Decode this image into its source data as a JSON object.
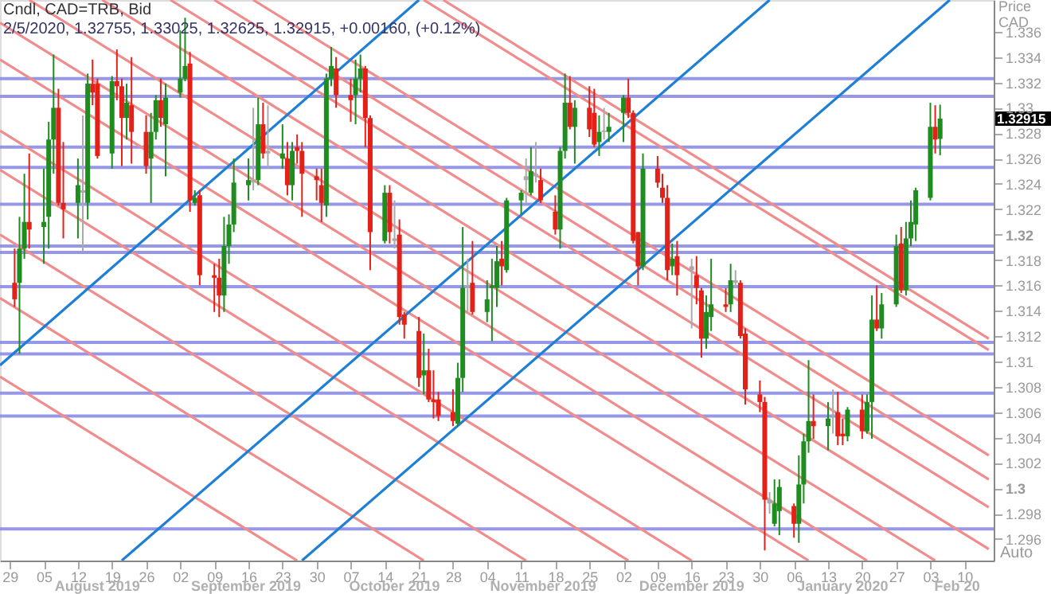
{
  "chart_data": {
    "type": "candlestick",
    "title": "Cndl, CAD=TRB, Bid",
    "subtitle": "2/5/2020, 1.32755, 1.33025, 1.32625, 1.32915, +0.00160, (+0.12%)",
    "ylabel": "Price CAD",
    "x": [
      "2019-07-30",
      "2019-07-31",
      "2019-08-01",
      "2019-08-02",
      "2019-08-05",
      "2019-08-06",
      "2019-08-07",
      "2019-08-08",
      "2019-08-09",
      "2019-08-12",
      "2019-08-13",
      "2019-08-14",
      "2019-08-15",
      "2019-08-16",
      "2019-08-19",
      "2019-08-20",
      "2019-08-21",
      "2019-08-22",
      "2019-08-23",
      "2019-08-26",
      "2019-08-27",
      "2019-08-28",
      "2019-08-29",
      "2019-08-30",
      "2019-09-02",
      "2019-09-03",
      "2019-09-04",
      "2019-09-05",
      "2019-09-06",
      "2019-09-09",
      "2019-09-10",
      "2019-09-11",
      "2019-09-12",
      "2019-09-13",
      "2019-09-16",
      "2019-09-17",
      "2019-09-18",
      "2019-09-19",
      "2019-09-20",
      "2019-09-23",
      "2019-09-24",
      "2019-09-25",
      "2019-09-26",
      "2019-09-27",
      "2019-09-30",
      "2019-10-01",
      "2019-10-02",
      "2019-10-03",
      "2019-10-04",
      "2019-10-07",
      "2019-10-08",
      "2019-10-09",
      "2019-10-10",
      "2019-10-11",
      "2019-10-14",
      "2019-10-15",
      "2019-10-16",
      "2019-10-17",
      "2019-10-18",
      "2019-10-21",
      "2019-10-22",
      "2019-10-23",
      "2019-10-24",
      "2019-10-25",
      "2019-10-28",
      "2019-10-29",
      "2019-10-30",
      "2019-10-31",
      "2019-11-01",
      "2019-11-04",
      "2019-11-05",
      "2019-11-06",
      "2019-11-07",
      "2019-11-08",
      "2019-11-11",
      "2019-11-12",
      "2019-11-13",
      "2019-11-14",
      "2019-11-15",
      "2019-11-18",
      "2019-11-19",
      "2019-11-20",
      "2019-11-21",
      "2019-11-22",
      "2019-11-25",
      "2019-11-26",
      "2019-11-27",
      "2019-11-28",
      "2019-11-29",
      "2019-12-02",
      "2019-12-03",
      "2019-12-04",
      "2019-12-05",
      "2019-12-06",
      "2019-12-09",
      "2019-12-10",
      "2019-12-11",
      "2019-12-12",
      "2019-12-13",
      "2019-12-16",
      "2019-12-17",
      "2019-12-18",
      "2019-12-19",
      "2019-12-20",
      "2019-12-23",
      "2019-12-24",
      "2019-12-25",
      "2019-12-26",
      "2019-12-27",
      "2019-12-30",
      "2019-12-31",
      "2020-01-01",
      "2020-01-02",
      "2020-01-03",
      "2020-01-06",
      "2020-01-07",
      "2020-01-08",
      "2020-01-09",
      "2020-01-10",
      "2020-01-13",
      "2020-01-14",
      "2020-01-15",
      "2020-01-16",
      "2020-01-17",
      "2020-01-20",
      "2020-01-21",
      "2020-01-22",
      "2020-01-23",
      "2020-01-24",
      "2020-01-27",
      "2020-01-28",
      "2020-01-29",
      "2020-01-30",
      "2020-01-31",
      "2020-02-03",
      "2020-02-04",
      "2020-02-05"
    ],
    "ohlc": [
      [
        1.3162,
        1.3189,
        1.3143,
        1.3149
      ],
      [
        1.3162,
        1.3214,
        1.3106,
        1.3189
      ],
      [
        1.3189,
        1.3248,
        1.3181,
        1.321
      ],
      [
        1.321,
        1.3264,
        1.3189,
        1.3204
      ],
      [
        1.3206,
        1.3252,
        1.3177,
        1.321
      ],
      [
        1.3214,
        1.3289,
        1.3189,
        1.3275
      ],
      [
        1.3275,
        1.3342,
        1.3248,
        1.33
      ],
      [
        1.33,
        1.3315,
        1.3223,
        1.3225
      ],
      [
        1.3225,
        1.3273,
        1.3197,
        1.322
      ],
      [
        1.3225,
        1.326,
        1.3197,
        1.3239
      ],
      [
        1.3233,
        1.3294,
        1.3187,
        1.3235
      ],
      [
        1.3225,
        1.3327,
        1.3212,
        1.3319
      ],
      [
        1.3319,
        1.3338,
        1.3302,
        1.3312
      ],
      [
        1.3319,
        1.3323,
        1.326,
        1.3262
      ],
      [
        1.3264,
        1.3325,
        1.3252,
        1.3321
      ],
      [
        1.3321,
        1.3346,
        1.3306,
        1.3317
      ],
      [
        1.3317,
        1.3323,
        1.3254,
        1.3292
      ],
      [
        1.3292,
        1.3319,
        1.3275,
        1.3304
      ],
      [
        1.3302,
        1.334,
        1.3256,
        1.3281
      ],
      [
        1.3281,
        1.3294,
        1.3248,
        1.3254
      ],
      [
        1.326,
        1.3296,
        1.3225,
        1.3281
      ],
      [
        1.3281,
        1.331,
        1.3275,
        1.3306
      ],
      [
        1.3306,
        1.3323,
        1.3285,
        1.3292
      ],
      [
        1.3287,
        1.3319,
        1.3246,
        1.3308
      ],
      [
        1.3312,
        1.3361,
        1.3308,
        1.3323
      ],
      [
        1.3323,
        1.3371,
        1.3321,
        1.3333
      ],
      [
        1.3335,
        1.3344,
        1.3218,
        1.3227
      ],
      [
        1.3225,
        1.3235,
        1.3223,
        1.3229
      ],
      [
        1.3231,
        1.3235,
        1.316,
        1.3168
      ],
      [
        1.3168,
        1.3177,
        1.3139,
        1.3166
      ],
      [
        1.3166,
        1.3181,
        1.3135,
        1.3152
      ],
      [
        1.3152,
        1.3214,
        1.3139,
        1.3191
      ],
      [
        1.3191,
        1.3216,
        1.3177,
        1.3208
      ],
      [
        1.3208,
        1.326,
        1.3202,
        1.3241
      ],
      [
        1.3239,
        1.326,
        1.3227,
        1.3243
      ],
      [
        1.3241,
        1.33,
        1.3235,
        1.3243
      ],
      [
        1.3243,
        1.3308,
        1.3239,
        1.3287
      ],
      [
        1.3287,
        1.3304,
        1.326,
        1.3264
      ],
      [
        1.3264,
        1.3302,
        1.3252,
        1.3266
      ],
      [
        1.326,
        1.3287,
        1.3252,
        1.3264
      ],
      [
        1.326,
        1.3273,
        1.3231,
        1.3239
      ],
      [
        1.3239,
        1.3273,
        1.3227,
        1.3266
      ],
      [
        1.3269,
        1.3279,
        1.3256,
        1.3266
      ],
      [
        1.3266,
        1.3273,
        1.3214,
        1.3248
      ],
      [
        1.3246,
        1.3252,
        1.3227,
        1.3243
      ],
      [
        1.3239,
        1.3252,
        1.321,
        1.3225
      ],
      [
        1.3223,
        1.3327,
        1.3214,
        1.3323
      ],
      [
        1.3323,
        1.3348,
        1.3317,
        1.3333
      ],
      [
        1.3331,
        1.334,
        1.33,
        1.331
      ],
      [
        1.331,
        1.3323,
        1.3289,
        1.3306
      ],
      [
        1.331,
        1.3338,
        1.3287,
        1.3323
      ],
      [
        1.3323,
        1.3342,
        1.3312,
        1.3331
      ],
      [
        1.3331,
        1.3333,
        1.3269,
        1.3292
      ],
      [
        1.3292,
        1.3294,
        1.3172,
        1.3202
      ],
      [
        1.3195,
        1.3239,
        1.3193,
        1.3233
      ],
      [
        1.3233,
        1.3239,
        1.3193,
        1.3202
      ],
      [
        1.3195,
        1.3227,
        1.3189,
        1.3197
      ],
      [
        1.32,
        1.3212,
        1.3129,
        1.3135
      ],
      [
        1.3137,
        1.3139,
        1.3118,
        1.3129
      ],
      [
        1.3124,
        1.3135,
        1.308,
        1.3087
      ],
      [
        1.3089,
        1.3122,
        1.3074,
        1.3093
      ],
      [
        1.3093,
        1.311,
        1.3068,
        1.307
      ],
      [
        1.307,
        1.3093,
        1.3055,
        1.3068
      ],
      [
        1.307,
        1.3076,
        1.3053,
        1.3057
      ],
      [
        1.306,
        1.3078,
        1.3049,
        1.3053
      ],
      [
        1.3051,
        1.3099,
        1.3049,
        1.3087
      ],
      [
        1.3087,
        1.3206,
        1.3076,
        1.3158
      ],
      [
        1.3158,
        1.3181,
        1.3139,
        1.316
      ],
      [
        1.3162,
        1.3195,
        1.3137,
        1.3139
      ],
      [
        1.3139,
        1.3164,
        1.3131,
        1.3149
      ],
      [
        1.3158,
        1.3181,
        1.3116,
        1.316
      ],
      [
        1.3158,
        1.3191,
        1.3143,
        1.3179
      ],
      [
        1.3181,
        1.3195,
        1.316,
        1.3175
      ],
      [
        1.3172,
        1.3229,
        1.317,
        1.3227
      ],
      [
        1.3227,
        1.3235,
        1.3216,
        1.3233
      ],
      [
        1.3243,
        1.326,
        1.3225,
        1.3246
      ],
      [
        1.3233,
        1.3269,
        1.3231,
        1.325
      ],
      [
        1.3246,
        1.3273,
        1.3241,
        1.3248
      ],
      [
        1.3243,
        1.3252,
        1.3225,
        1.3227
      ],
      [
        1.3218,
        1.3231,
        1.32,
        1.3204
      ],
      [
        1.3204,
        1.3269,
        1.3189,
        1.3266
      ],
      [
        1.3266,
        1.3327,
        1.326,
        1.3304
      ],
      [
        1.3304,
        1.3325,
        1.3283,
        1.3285
      ],
      [
        1.3285,
        1.3306,
        1.3256,
        1.33
      ],
      [
        1.33,
        1.3317,
        1.3277,
        1.3283
      ],
      [
        1.3296,
        1.3315,
        1.3269,
        1.3271
      ],
      [
        1.3273,
        1.3294,
        1.3262,
        1.3281
      ],
      [
        1.3281,
        1.33,
        1.3275,
        1.3282
      ],
      [
        1.3281,
        1.3296,
        1.3273,
        1.3285
      ],
      [
        1.3296,
        1.331,
        1.3273,
        1.3308
      ],
      [
        1.3308,
        1.3323,
        1.3292,
        1.3296
      ],
      [
        1.3296,
        1.3298,
        1.3193,
        1.3195
      ],
      [
        1.3202,
        1.3202,
        1.316,
        1.3175
      ],
      [
        1.3175,
        1.3264,
        1.3172,
        1.3252
      ],
      [
        1.3252,
        1.3262,
        1.3237,
        1.3241
      ],
      [
        1.3237,
        1.3248,
        1.3225,
        1.3229
      ],
      [
        1.3229,
        1.3239,
        1.3164,
        1.3172
      ],
      [
        1.3175,
        1.3193,
        1.3168,
        1.3181
      ],
      [
        1.3183,
        1.3195,
        1.3152,
        1.3168
      ],
      [
        1.3175,
        1.3181,
        1.3126,
        1.3172
      ],
      [
        1.3168,
        1.3183,
        1.3145,
        1.3158
      ],
      [
        1.3156,
        1.3158,
        1.3103,
        1.3118
      ],
      [
        1.3118,
        1.3152,
        1.311,
        1.3139
      ],
      [
        1.3135,
        1.3181,
        1.3124,
        1.3145
      ],
      [
        1.3145,
        1.3158,
        1.3139,
        1.3143
      ],
      [
        1.3145,
        1.3177,
        1.3139,
        1.3164
      ],
      [
        1.3164,
        1.3172,
        1.3158,
        1.3162
      ],
      [
        1.3162,
        1.3164,
        1.3118,
        1.312
      ],
      [
        1.3122,
        1.3126,
        1.3066,
        1.3078
      ],
      [
        1.3074,
        1.3085,
        1.306,
        1.3068
      ],
      [
        1.3068,
        1.3072,
        1.2951,
        1.2991
      ],
      [
        1.2991,
        1.2997,
        1.298,
        1.2988
      ],
      [
        1.2972,
        1.3007,
        1.297,
        1.2988
      ],
      [
        1.2982,
        1.3007,
        1.2963,
        1.3001
      ],
      [
        1.2986,
        1.2988,
        1.2961,
        1.2972
      ],
      [
        1.2972,
        1.3026,
        1.2957,
        1.3003
      ],
      [
        1.3003,
        1.3043,
        1.2988,
        1.3037
      ],
      [
        1.3037,
        1.3101,
        1.3028,
        1.3053
      ],
      [
        1.3053,
        1.3074,
        1.3039,
        1.3049
      ],
      [
        1.3049,
        1.3068,
        1.303,
        1.3055
      ],
      [
        1.3057,
        1.3078,
        1.3043,
        1.3058
      ],
      [
        1.306,
        1.3076,
        1.3034,
        1.3041
      ],
      [
        1.3043,
        1.3055,
        1.3034,
        1.3041
      ],
      [
        1.3041,
        1.3064,
        1.3037,
        1.3062
      ],
      [
        1.3062,
        1.3074,
        1.3039,
        1.3045
      ],
      [
        1.3045,
        1.3074,
        1.3043,
        1.3068
      ],
      [
        1.3068,
        1.3152,
        1.3039,
        1.3133
      ],
      [
        1.3133,
        1.316,
        1.3124,
        1.3126
      ],
      [
        1.3126,
        1.3154,
        1.3118,
        1.3145
      ],
      [
        1.3145,
        1.32,
        1.3143,
        1.3191
      ],
      [
        1.3193,
        1.3206,
        1.3154,
        1.3156
      ],
      [
        1.3156,
        1.321,
        1.3152,
        1.3197
      ],
      [
        1.3197,
        1.3227,
        1.3191,
        1.321
      ],
      [
        1.3208,
        1.3237,
        1.3195,
        1.3235
      ],
      [
        1.3229,
        1.3304,
        1.3227,
        1.3285
      ],
      [
        1.3285,
        1.3302,
        1.3264,
        1.3275
      ],
      [
        1.32755,
        1.33025,
        1.32625,
        1.32915
      ]
    ],
    "colors": [
      "#e32119",
      "#1e8c1e",
      "#1e8c1e",
      "#e32119",
      "#1e8c1e",
      "#1e8c1e",
      "#1e8c1e",
      "#e32119",
      "#e32119",
      "#1e8c1e",
      "#aaaaaa",
      "#1e8c1e",
      "#e32119",
      "#e32119",
      "#1e8c1e",
      "#e32119",
      "#e32119",
      "#1e8c1e",
      "#e32119",
      "#e32119",
      "#1e8c1e",
      "#1e8c1e",
      "#e32119",
      "#1e8c1e",
      "#1e8c1e",
      "#1e8c1e",
      "#e32119",
      "#1e8c1e",
      "#e32119",
      "#e32119",
      "#e32119",
      "#1e8c1e",
      "#1e8c1e",
      "#1e8c1e",
      "#1e8c1e",
      "#aaaaaa",
      "#1e8c1e",
      "#e32119",
      "#aaaaaa",
      "#1e8c1e",
      "#e32119",
      "#1e8c1e",
      "#e32119",
      "#e32119",
      "#e32119",
      "#e32119",
      "#1e8c1e",
      "#1e8c1e",
      "#e32119",
      "#e32119",
      "#1e8c1e",
      "#1e8c1e",
      "#e32119",
      "#e32119",
      "#1e8c1e",
      "#e32119",
      "#aaaaaa",
      "#e32119",
      "#e32119",
      "#e32119",
      "#1e8c1e",
      "#e32119",
      "#e32119",
      "#e32119",
      "#e32119",
      "#1e8c1e",
      "#1e8c1e",
      "#aaaaaa",
      "#e32119",
      "#1e8c1e",
      "#1e8c1e",
      "#1e8c1e",
      "#e32119",
      "#1e8c1e",
      "#1e8c1e",
      "#aaaaaa",
      "#1e8c1e",
      "#aaaaaa",
      "#e32119",
      "#e32119",
      "#1e8c1e",
      "#1e8c1e",
      "#e32119",
      "#1e8c1e",
      "#e32119",
      "#e32119",
      "#1e8c1e",
      "#aaaaaa",
      "#1e8c1e",
      "#1e8c1e",
      "#e32119",
      "#e32119",
      "#e32119",
      "#1e8c1e",
      "#e32119",
      "#e32119",
      "#e32119",
      "#1e8c1e",
      "#e32119",
      "#aaaaaa",
      "#e32119",
      "#e32119",
      "#1e8c1e",
      "#1e8c1e",
      "#e32119",
      "#1e8c1e",
      "#aaaaaa",
      "#e32119",
      "#e32119",
      "#e32119",
      "#e32119",
      "#aaaaaa",
      "#1e8c1e",
      "#1e8c1e",
      "#e32119",
      "#1e8c1e",
      "#1e8c1e",
      "#1e8c1e",
      "#e32119",
      "#1e8c1e",
      "#aaaaaa",
      "#e32119",
      "#e32119",
      "#1e8c1e",
      "#e32119",
      "#1e8c1e",
      "#1e8c1e",
      "#e32119",
      "#1e8c1e",
      "#1e8c1e",
      "#e32119",
      "#1e8c1e",
      "#1e8c1e",
      "#1e8c1e",
      "#1e8c1e",
      "#e32119",
      "#1e8c1e"
    ],
    "series": [
      {
        "type": "line",
        "color": "#f08c8c",
        "x": [
          "2019-10-26",
          "2020-02-15"
        ],
        "values": [
          1.3385,
          1.3118
        ]
      },
      {
        "type": "line",
        "color": "#f08c8c",
        "x": [
          "2019-10-22",
          "2020-02-15"
        ],
        "values": [
          1.3385,
          1.3109
        ]
      },
      {
        "type": "line",
        "color": "#f08c8c",
        "x": [
          "2019-09-17",
          "2020-02-15"
        ],
        "values": [
          1.3385,
          1.3026
        ]
      },
      {
        "type": "line",
        "color": "#f08c8c",
        "x": [
          "2019-09-09",
          "2020-02-15"
        ],
        "values": [
          1.3385,
          1.3007
        ]
      },
      {
        "type": "line",
        "color": "#f08c8c",
        "x": [
          "2019-08-31",
          "2020-02-15"
        ],
        "values": [
          1.3385,
          1.2985
        ]
      },
      {
        "type": "line",
        "color": "#f08c8c",
        "x": [
          "2019-08-17",
          "2020-02-15"
        ],
        "values": [
          1.3385,
          1.2952
        ]
      },
      {
        "type": "line",
        "color": "#f08c8c",
        "x": [
          "2019-08-02",
          "2020-02-04"
        ],
        "values": [
          1.3385,
          1.2943
        ]
      },
      {
        "type": "line",
        "color": "#f08c8c",
        "x": [
          "2019-07-27",
          "2020-01-21"
        ],
        "values": [
          1.3367,
          1.2943
        ]
      },
      {
        "type": "line",
        "color": "#f08c8c",
        "x": [
          "2019-07-27",
          "2020-01-09"
        ],
        "values": [
          1.3338,
          1.2943
        ]
      },
      {
        "type": "line",
        "color": "#f08c8c",
        "x": [
          "2019-07-27",
          "2019-12-16"
        ],
        "values": [
          1.3282,
          1.2943
        ]
      },
      {
        "type": "line",
        "color": "#f08c8c",
        "x": [
          "2019-07-27",
          "2019-12-03"
        ],
        "values": [
          1.3251,
          1.2943
        ]
      },
      {
        "type": "line",
        "color": "#f08c8c",
        "x": [
          "2019-07-27",
          "2019-11-12"
        ],
        "values": [
          1.32,
          1.2943
        ]
      },
      {
        "type": "line",
        "color": "#f08c8c",
        "x": [
          "2019-07-27",
          "2019-10-22"
        ],
        "values": [
          1.315,
          1.2943
        ]
      },
      {
        "type": "line",
        "color": "#f08c8c",
        "x": [
          "2019-07-27",
          "2019-09-26"
        ],
        "values": [
          1.3088,
          1.2943
        ]
      },
      {
        "type": "line",
        "color": "#1e7fd6",
        "x": [
          "2019-07-27",
          "2019-10-21"
        ],
        "values": [
          1.3097,
          1.3385
        ]
      },
      {
        "type": "line",
        "color": "#1e7fd6",
        "x": [
          "2019-08-21",
          "2020-01-01"
        ],
        "values": [
          1.2943,
          1.3385
        ]
      },
      {
        "type": "line",
        "color": "#1e7fd6",
        "x": [
          "2019-09-27",
          "2020-02-07"
        ],
        "values": [
          1.2943,
          1.3385
        ]
      }
    ],
    "ref_lines": [
      {
        "axis": "y",
        "value": 1.3323,
        "color": "#8c8ce6"
      },
      {
        "axis": "y",
        "value": 1.3309,
        "color": "#8c8ce6"
      },
      {
        "axis": "y",
        "value": 1.3269,
        "color": "#8c8ce6"
      },
      {
        "axis": "y",
        "value": 1.3253,
        "color": "#8c8ce6"
      },
      {
        "axis": "y",
        "value": 1.3224,
        "color": "#8c8ce6"
      },
      {
        "axis": "y",
        "value": 1.3191,
        "color": "#8c8ce6"
      },
      {
        "axis": "y",
        "value": 1.3186,
        "color": "#8c8ce6"
      },
      {
        "axis": "y",
        "value": 1.3159,
        "color": "#8c8ce6"
      },
      {
        "axis": "y",
        "value": 1.3115,
        "color": "#8c8ce6"
      },
      {
        "axis": "y",
        "value": 1.3106,
        "color": "#8c8ce6"
      },
      {
        "axis": "y",
        "value": 1.3075,
        "color": "#8c8ce6"
      },
      {
        "axis": "y",
        "value": 1.3057,
        "color": "#8c8ce6"
      },
      {
        "axis": "y",
        "value": 1.2968,
        "color": "#8c8ce6"
      }
    ],
    "xlim": [
      "2019-07-27",
      "2020-02-16"
    ],
    "ylim": [
      1.2943,
      1.3385
    ],
    "xticks": [
      {
        "value": "2019-07-29",
        "label": "29"
      },
      {
        "value": "2019-08-05",
        "label": "05"
      },
      {
        "value": "2019-08-12",
        "label": "12"
      },
      {
        "value": "2019-08-19",
        "label": "19"
      },
      {
        "value": "2019-08-26",
        "label": "26"
      },
      {
        "value": "2019-09-02",
        "label": "02"
      },
      {
        "value": "2019-09-09",
        "label": "09"
      },
      {
        "value": "2019-09-16",
        "label": "16"
      },
      {
        "value": "2019-09-23",
        "label": "23"
      },
      {
        "value": "2019-09-30",
        "label": "30"
      },
      {
        "value": "2019-10-07",
        "label": "07"
      },
      {
        "value": "2019-10-14",
        "label": "14"
      },
      {
        "value": "2019-10-21",
        "label": "21"
      },
      {
        "value": "2019-10-28",
        "label": "28"
      },
      {
        "value": "2019-11-04",
        "label": "04"
      },
      {
        "value": "2019-11-11",
        "label": "11"
      },
      {
        "value": "2019-11-18",
        "label": "18"
      },
      {
        "value": "2019-11-25",
        "label": "25"
      },
      {
        "value": "2019-12-02",
        "label": "02"
      },
      {
        "value": "2019-12-09",
        "label": "09"
      },
      {
        "value": "2019-12-16",
        "label": "16"
      },
      {
        "value": "2019-12-23",
        "label": "23"
      },
      {
        "value": "2019-12-30",
        "label": "30"
      },
      {
        "value": "2020-01-06",
        "label": "06"
      },
      {
        "value": "2020-01-13",
        "label": "13"
      },
      {
        "value": "2020-01-20",
        "label": "20"
      },
      {
        "value": "2020-01-27",
        "label": "27"
      },
      {
        "value": "2020-02-03",
        "label": "03"
      },
      {
        "value": "2020-02-10",
        "label": "10"
      }
    ],
    "yticks": [
      1.296,
      1.298,
      1.3,
      1.302,
      1.304,
      1.306,
      1.308,
      1.31,
      1.312,
      1.314,
      1.316,
      1.318,
      1.32,
      1.322,
      1.324,
      1.326,
      1.328,
      1.33,
      1.332,
      1.334,
      1.336
    ],
    "annotations": [
      "August 2019",
      "September 2019",
      "October 2019",
      "November 2019",
      "December 2019",
      "January 2020",
      "Feb 20",
      "1.32915",
      "Auto"
    ]
  }
}
